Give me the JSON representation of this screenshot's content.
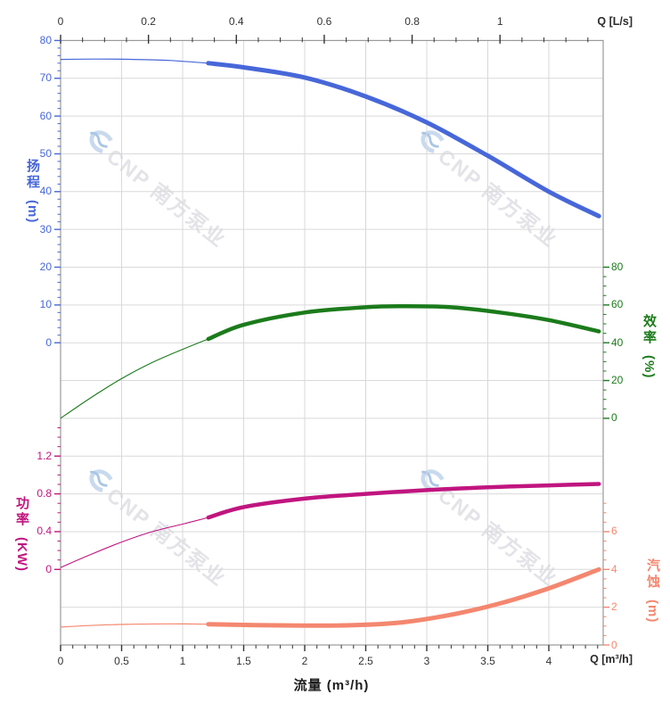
{
  "watermark": {
    "text": "CNP 南方泵业",
    "logo": "cnp-eye-logo",
    "logo_color": "#c9daee",
    "text_color": "#e3e3e8"
  },
  "chart_data": {
    "type": "line",
    "grid": true,
    "x_range_m3h": [
      0,
      4.445
    ],
    "axes": {
      "flow_top": {
        "unit_label": "Q [L/s]",
        "ticks": [
          0,
          0.2,
          0.4,
          0.6,
          0.8,
          1
        ],
        "minor_step": 0.05,
        "minor_max": 1.2,
        "color": "#333333"
      },
      "flow_bottom": {
        "title": "流量 (m³/h)",
        "unit_label": "Q [m³/h]",
        "ticks": [
          0,
          0.5,
          1,
          1.5,
          2,
          2.5,
          3,
          3.5,
          4
        ],
        "minor_step": 0.1,
        "minor_max": 4.4,
        "color": "#333333"
      },
      "head": {
        "title": "扬程",
        "unit": "(m)",
        "side": "left",
        "ticks": [
          80,
          70,
          60,
          50,
          40,
          30,
          20,
          10,
          0
        ],
        "minor_step": 2,
        "minor_max": 80,
        "range": [
          0,
          80
        ],
        "color": "#4767d9"
      },
      "efficiency": {
        "title": "效率",
        "unit": "(%)",
        "side": "right",
        "ticks": [
          80,
          60,
          40,
          20,
          0
        ],
        "minor_step": 5,
        "minor_max": 80,
        "range": [
          0,
          80
        ],
        "color": "#1b7b1b"
      },
      "power": {
        "title": "功率",
        "unit": "(KW)",
        "side": "left",
        "ticks": [
          1.2,
          0.8,
          0.4,
          0
        ],
        "minor_step": 0.1,
        "minor_max": 1.5,
        "range": [
          0,
          1.2
        ],
        "color": "#c0157f"
      },
      "npsh": {
        "title": "汽蚀",
        "unit": "(m)",
        "side": "right",
        "ticks": [
          6,
          4,
          2,
          0
        ],
        "minor_step": 0.5,
        "minor_max": 7.5,
        "range": [
          0,
          6
        ],
        "color": "#f4876f"
      }
    },
    "series": [
      {
        "name": "head-curve",
        "axis": "head",
        "color": "#4767d9",
        "thin_width": 1.2,
        "thick_width": 5,
        "thin": [
          [
            0,
            75
          ],
          [
            0.3,
            75.1
          ],
          [
            0.6,
            75
          ],
          [
            0.9,
            74.7
          ],
          [
            1.21,
            74.0
          ]
        ],
        "thick": [
          [
            1.21,
            74.0
          ],
          [
            1.5,
            72.9
          ],
          [
            2.0,
            70.2
          ],
          [
            2.5,
            65.2
          ],
          [
            3.0,
            58.3
          ],
          [
            3.5,
            49.5
          ],
          [
            4.0,
            40.0
          ],
          [
            4.41,
            33.5
          ]
        ]
      },
      {
        "name": "efficiency-curve",
        "axis": "efficiency",
        "color": "#1b7b1b",
        "thin_width": 1.1,
        "thick_width": 4.5,
        "thin": [
          [
            0,
            0
          ],
          [
            0.25,
            11
          ],
          [
            0.5,
            21
          ],
          [
            0.75,
            29.5
          ],
          [
            1.0,
            36.5
          ],
          [
            1.21,
            42
          ]
        ],
        "thick": [
          [
            1.21,
            42
          ],
          [
            1.5,
            49.5
          ],
          [
            2.0,
            56
          ],
          [
            2.5,
            58.8
          ],
          [
            2.8,
            59.3
          ],
          [
            3.2,
            58.8
          ],
          [
            3.6,
            56
          ],
          [
            4.0,
            52
          ],
          [
            4.41,
            46
          ]
        ]
      },
      {
        "name": "power-curve",
        "axis": "power",
        "color": "#c0157f",
        "thin_width": 1.1,
        "thick_width": 4.5,
        "thin": [
          [
            0,
            0.02
          ],
          [
            0.25,
            0.16
          ],
          [
            0.5,
            0.29
          ],
          [
            0.75,
            0.4
          ],
          [
            1.0,
            0.48
          ],
          [
            1.21,
            0.55
          ]
        ],
        "thick": [
          [
            1.21,
            0.55
          ],
          [
            1.5,
            0.66
          ],
          [
            2.0,
            0.75
          ],
          [
            2.5,
            0.8
          ],
          [
            3.0,
            0.84
          ],
          [
            3.5,
            0.87
          ],
          [
            4.0,
            0.89
          ],
          [
            4.41,
            0.905
          ]
        ]
      },
      {
        "name": "npsh-curve",
        "axis": "npsh",
        "color": "#f4876f",
        "thin_width": 1.2,
        "thick_width": 5,
        "thin": [
          [
            0,
            0.95
          ],
          [
            0.3,
            1.05
          ],
          [
            0.6,
            1.1
          ],
          [
            0.9,
            1.12
          ],
          [
            1.21,
            1.1
          ]
        ],
        "thick": [
          [
            1.21,
            1.1
          ],
          [
            1.6,
            1.05
          ],
          [
            2.0,
            1.03
          ],
          [
            2.4,
            1.05
          ],
          [
            2.8,
            1.2
          ],
          [
            3.2,
            1.6
          ],
          [
            3.6,
            2.2
          ],
          [
            4.0,
            3.0
          ],
          [
            4.41,
            4.0
          ]
        ]
      }
    ]
  }
}
